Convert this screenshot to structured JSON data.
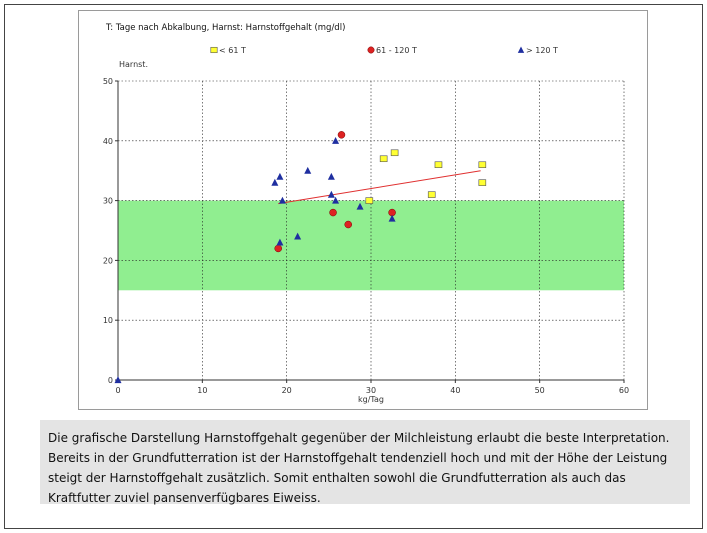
{
  "chart_data": {
    "type": "scatter",
    "title": "T: Tage nach Abkalbung,  Harnst: Harnstoffgehalt (mg/dl)",
    "ylabel": "Harnst.",
    "xlabel": "kg/Tag",
    "xlim": [
      0,
      60
    ],
    "ylim": [
      0,
      50
    ],
    "x_ticks": [
      0,
      10,
      20,
      30,
      40,
      50,
      60
    ],
    "y_ticks": [
      0,
      10,
      20,
      30,
      40,
      50
    ],
    "grid": true,
    "legend_position": "top",
    "target_band": {
      "y_from": 15,
      "y_to": 30,
      "color": "#90ee90"
    },
    "trendline": {
      "x": [
        19,
        43
      ],
      "y": [
        29.5,
        35
      ],
      "color": "#e03030"
    },
    "series": [
      {
        "name": "< 61 T",
        "marker": "square",
        "color": "#ffff33",
        "points": [
          [
            29.8,
            30
          ],
          [
            31.5,
            37
          ],
          [
            32.8,
            38
          ],
          [
            37.2,
            31
          ],
          [
            38,
            36
          ],
          [
            43.2,
            36
          ],
          [
            43.2,
            33
          ]
        ]
      },
      {
        "name": "61 - 120 T",
        "marker": "circle",
        "color": "#dd2222",
        "points": [
          [
            26.5,
            41
          ],
          [
            25.5,
            28
          ],
          [
            27.3,
            26
          ],
          [
            32.5,
            28
          ],
          [
            19,
            22
          ]
        ]
      },
      {
        "name": "> 120 T",
        "marker": "triangle",
        "color": "#1f2fa0",
        "points": [
          [
            0,
            0
          ],
          [
            18.6,
            33
          ],
          [
            19.2,
            34
          ],
          [
            19.5,
            30
          ],
          [
            19.2,
            23
          ],
          [
            21.3,
            24
          ],
          [
            22.5,
            35
          ],
          [
            25.3,
            34
          ],
          [
            25.8,
            40
          ],
          [
            25.3,
            31
          ],
          [
            25.8,
            30
          ],
          [
            28.7,
            29
          ],
          [
            32.5,
            27
          ]
        ]
      }
    ]
  },
  "caption": {
    "text": "Die grafische Darstellung Harnstoffgehalt gegenüber der Milchleistung erlaubt die beste Interpretation. Bereits in der Grundfutterration ist der Harnstoffgehalt tendenziell hoch und mit der Höhe der Leistung steigt der Harnstoffgehalt zusätzlich. Somit enthalten sowohl die Grundfutterration als auch das Kraftfutter zuviel pansenverfügbares Eiweiss."
  }
}
